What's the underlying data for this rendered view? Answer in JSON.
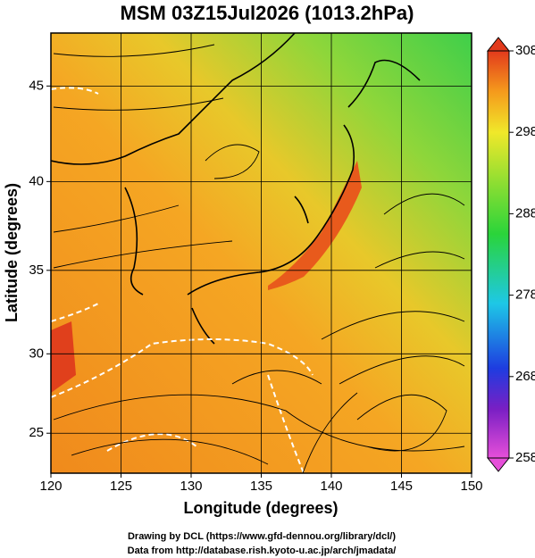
{
  "title": "MSM 03Z15Jul2026 (1013.2hPa)",
  "map": {
    "x_label": "Longitude (degrees)",
    "y_label": "Latitude  (degrees)",
    "projection": "mercator",
    "xlim": [
      120,
      150
    ],
    "ylim": [
      22.4,
      47.6
    ],
    "xticks": [
      120,
      125,
      130,
      135,
      140,
      145,
      150
    ],
    "yticks": [
      25,
      30,
      35,
      40,
      45
    ],
    "grid": true
  },
  "colorbar": {
    "lim": [
      258,
      308
    ],
    "ticks": [
      258,
      268,
      278,
      288,
      298,
      308
    ]
  },
  "credits": [
    "Drawing by DCL (https://www.gfd-dennou.org/library/dcl/)",
    "Data from http://database.rish.kyoto-u.ac.jp/arch/jmadata/"
  ]
}
